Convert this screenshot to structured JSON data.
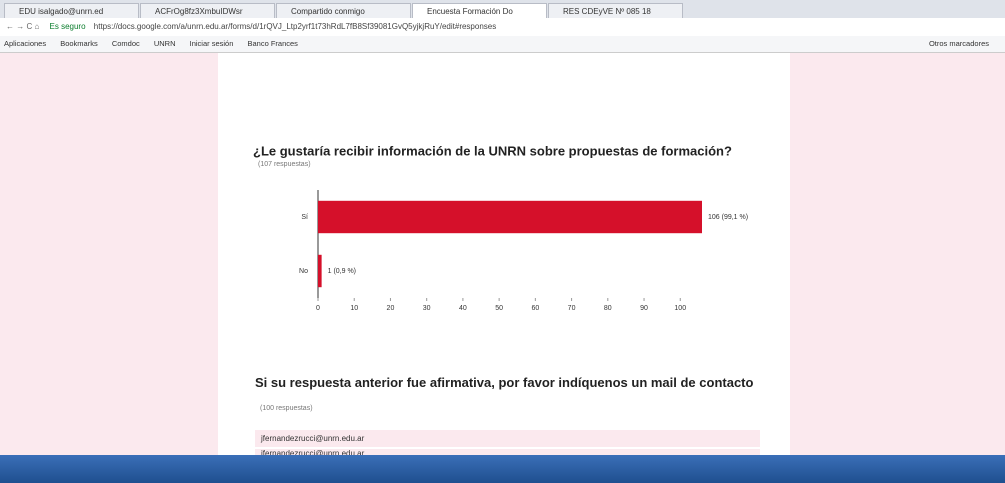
{
  "browser": {
    "tabs": [
      "EDU isalgado@unrn.ed",
      "ACFrOg8fz3XmbuIDWsr",
      "Compartido conmigo",
      "Encuesta Formación Do",
      "RES CDEyVE Nº 085 18"
    ],
    "secure": "Es seguro",
    "url": "https://docs.google.com/a/unrn.edu.ar/forms/d/1rQVJ_Ltp2yrf1t73hRdL7fB8Sf39081GvQ5yjkjRuY/edit#responses",
    "bookmarks": [
      "Aplicaciones",
      "Bookmarks",
      "Comdoc",
      "UNRN",
      "Iniciar sesión",
      "Banco Frances"
    ],
    "other_bookmarks": "Otros marcadores"
  },
  "chart_data": {
    "type": "hbar",
    "title": "¿Le gustaría recibir información de la UNRN sobre propuestas de formación?",
    "subtitle": "(107 respuestas)",
    "categories": [
      "Sí",
      "No"
    ],
    "values": [
      106,
      1
    ],
    "value_labels": [
      "106 (99,1 %)",
      "1 (0,9 %)"
    ],
    "color": "#d5102a",
    "xlim": [
      0,
      106
    ],
    "xticks": [
      0,
      10,
      20,
      30,
      40,
      50,
      60,
      70,
      80,
      90,
      100
    ]
  },
  "question2": {
    "title": "Si su respuesta anterior fue afirmativa, por favor indíquenos un mail de contacto",
    "subtitle": "(100 respuestas)",
    "answers": [
      "jfernandezrucci@unrn.edu.ar",
      "jfernandezrucci@unrn.edu.ar"
    ]
  }
}
